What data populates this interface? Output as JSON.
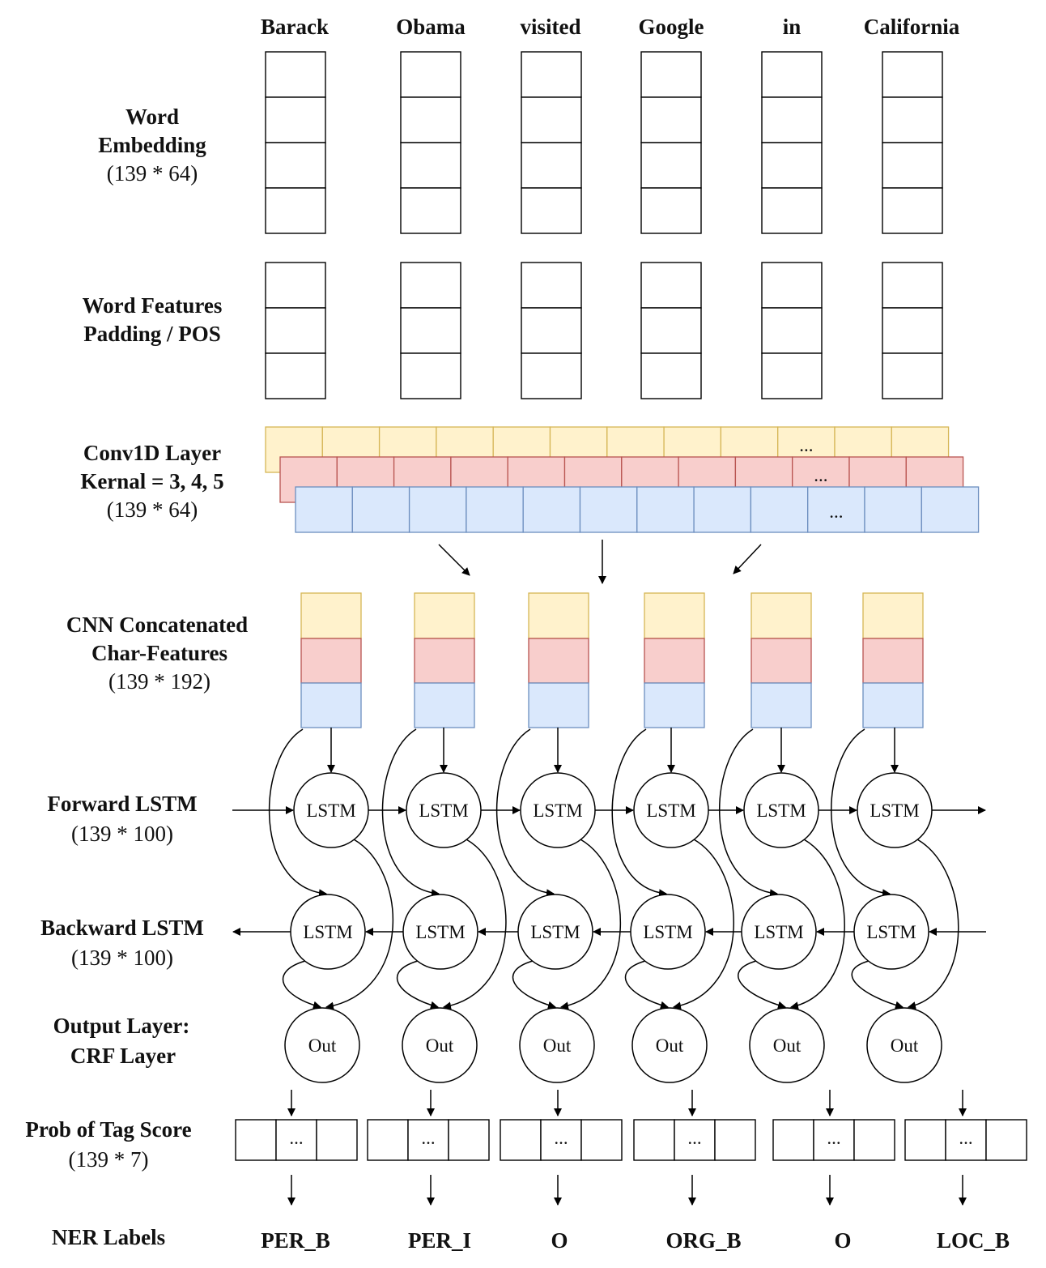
{
  "words": [
    "Barack",
    "Obama",
    "visited",
    "Google",
    "in",
    "California"
  ],
  "layers": {
    "word_embedding": {
      "line1": "Word",
      "line2": "Embedding",
      "dims": "(139 * 64)"
    },
    "word_features": {
      "line1": "Word Features",
      "line2": "Padding / POS"
    },
    "conv1d": {
      "line1": "Conv1D Layer",
      "line2": "Kernal = 3, 4, 5",
      "dims": "(139 * 64)",
      "ellipsis": "..."
    },
    "cnn_concat": {
      "line1": "CNN Concatenated",
      "line2": "Char-Features",
      "dims": "(139 * 192)"
    },
    "forward_lstm": {
      "line1": "Forward LSTM",
      "dims": "(139 * 100)"
    },
    "backward_lstm": {
      "line1": "Backward LSTM",
      "dims": "(139 * 100)"
    },
    "output_layer": {
      "line1": "Output Layer:",
      "line2": "CRF Layer"
    },
    "prob_tag": {
      "line1": "Prob of Tag Score",
      "dims": "(139 * 7)",
      "ellipsis": "..."
    },
    "ner_labels": {
      "line1": "NER Labels"
    }
  },
  "node_labels": {
    "lstm": "LSTM",
    "out": "Out"
  },
  "ner_tags": [
    "PER_B",
    "PER_I",
    "O",
    "ORG_B",
    "O",
    "LOC_B"
  ],
  "colors": {
    "yellow_fill": "#fff2cc",
    "yellow_stroke": "#d6b656",
    "red_fill": "#f8cecc",
    "red_stroke": "#b85450",
    "blue_fill": "#dae8fc",
    "blue_stroke": "#6c8ebf",
    "line": "#000000"
  }
}
